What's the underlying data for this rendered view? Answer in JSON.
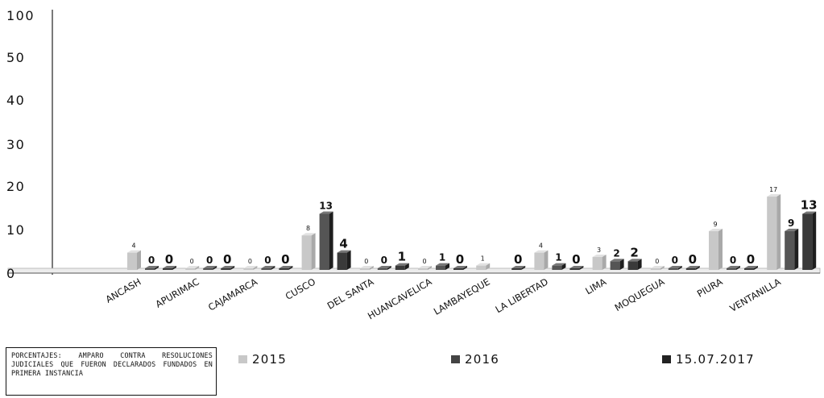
{
  "chart_data": {
    "type": "bar",
    "title": "",
    "xlabel": "",
    "ylabel": "",
    "ylim": [
      0,
      100
    ],
    "y_ticks": [
      "0",
      "10",
      "20",
      "30",
      "40",
      "50",
      "100"
    ],
    "categories": [
      "ANCASH",
      "APURIMAC",
      "CAJAMARCA",
      "CUSCO",
      "DEL SANTA",
      "HUANCAVELICA",
      "LAMBAYEQUE",
      "LA LIBERTAD",
      "LIMA",
      "MOQUEGUA",
      "PIURA",
      "VENTANILLA"
    ],
    "series": [
      {
        "name": "2015",
        "color": "#c8c8c8",
        "values": [
          4,
          0,
          0,
          8,
          0,
          0,
          1,
          4,
          3,
          0,
          9,
          17
        ],
        "labels": [
          "4",
          "0",
          "0",
          "8",
          "0",
          "0",
          "1",
          "4",
          "3",
          "0",
          "9",
          "17"
        ]
      },
      {
        "name": "2016",
        "color": "#555555",
        "values": [
          0,
          0,
          0,
          13,
          0,
          1,
          null,
          1,
          2,
          0,
          0,
          9
        ],
        "labels": [
          "0",
          "0",
          "0",
          "13",
          "0",
          "1",
          "",
          "1",
          "2",
          "0",
          "0",
          "9"
        ]
      },
      {
        "name": "15.07.2017",
        "color": "#3a3a3a",
        "values": [
          0,
          0,
          0,
          4,
          1,
          0,
          0,
          0,
          2,
          0,
          0,
          13
        ],
        "labels": [
          "0",
          "0",
          "0",
          "4",
          "1",
          "0",
          "0",
          "0",
          "2",
          "0",
          "0",
          "13"
        ]
      }
    ],
    "grid": false,
    "legend_position": "bottom"
  },
  "note": "PORCENTAJES: AMPARO CONTRA RESOLUCIONES JUDICIALES QUE FUERON DECLARADOS FUNDADOS EN PRIMERA INSTANCIA"
}
